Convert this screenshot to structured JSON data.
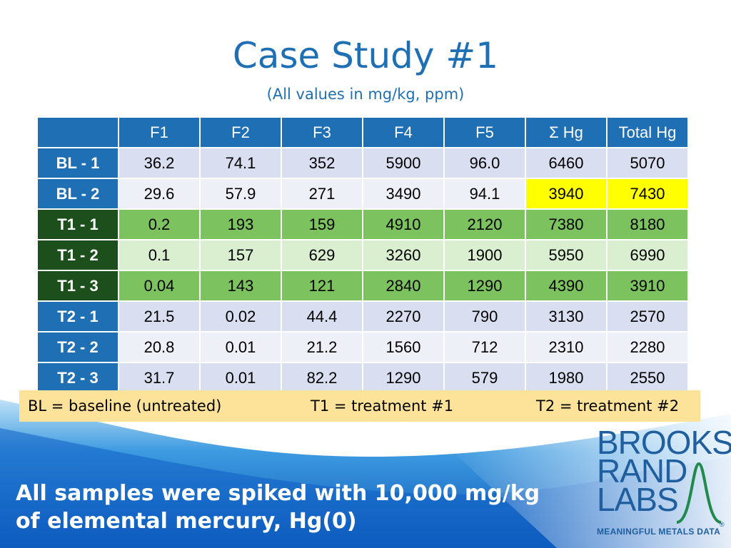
{
  "slide": {
    "title": "Case Study #1",
    "subtitle": "(All values in mg/kg, ppm)"
  },
  "table": {
    "columns": [
      "F1",
      "F2",
      "F3",
      "F4",
      "F5",
      "Σ Hg",
      "Total Hg"
    ],
    "rows": [
      {
        "label": "BL - 1",
        "values": [
          "36.2",
          "74.1",
          "352",
          "5900",
          "96.0",
          "6460",
          "5070"
        ]
      },
      {
        "label": "BL - 2",
        "values": [
          "29.6",
          "57.9",
          "271",
          "3490",
          "94.1",
          "3940",
          "7430"
        ]
      },
      {
        "label": "T1 - 1",
        "values": [
          "0.2",
          "193",
          "159",
          "4910",
          "2120",
          "7380",
          "8180"
        ]
      },
      {
        "label": "T1 - 2",
        "values": [
          "0.1",
          "157",
          "629",
          "3260",
          "1900",
          "5950",
          "6990"
        ]
      },
      {
        "label": "T1 - 3",
        "values": [
          "0.04",
          "143",
          "121",
          "2840",
          "1290",
          "4390",
          "3910"
        ]
      },
      {
        "label": "T2 - 1",
        "values": [
          "21.5",
          "0.02",
          "44.4",
          "2270",
          "790",
          "3130",
          "2570"
        ]
      },
      {
        "label": "T2 - 2",
        "values": [
          "20.8",
          "0.01",
          "21.2",
          "1560",
          "712",
          "2310",
          "2280"
        ]
      },
      {
        "label": "T2 - 3",
        "values": [
          "31.7",
          "0.01",
          "82.2",
          "1290",
          "579",
          "1980",
          "2550"
        ]
      }
    ],
    "highlight_color": "#ffff00",
    "header_color": "#1f6fb5",
    "treatment1_color": "#7cc25f"
  },
  "legend": {
    "bl": "BL = baseline (untreated)",
    "t1": "T1 = treatment #1",
    "t2": "T2 = treatment #2"
  },
  "note": {
    "line1": "All samples were spiked with 10,000 mg/kg",
    "line2": "of elemental mercury, Hg(0)"
  },
  "logo": {
    "line1": "BROOKS",
    "line2": "RAND",
    "line3": "LABS",
    "tagline": "MEANINGFUL METALS DATA",
    "registered": "®"
  }
}
